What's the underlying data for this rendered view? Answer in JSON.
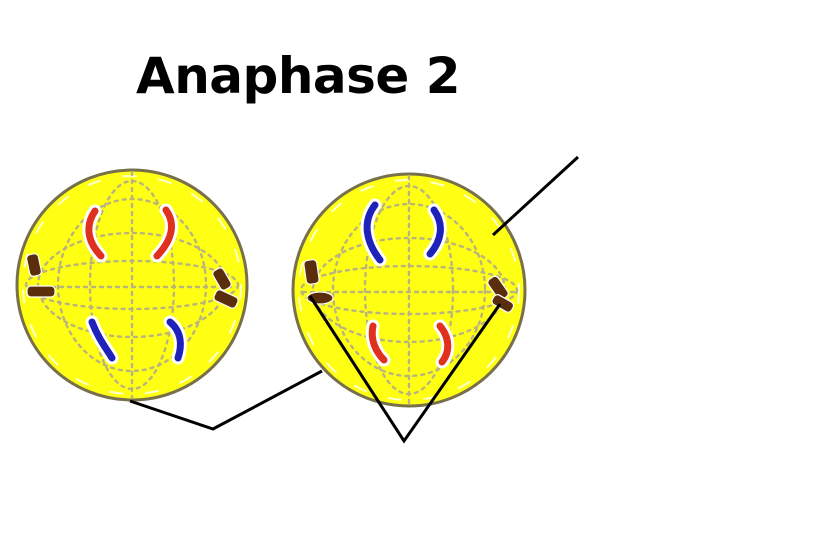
{
  "title": "Anaphase 2",
  "colors": {
    "background": "#ffffff",
    "cell_fill": "#ffff14",
    "cell_outline": "#77704a",
    "spindle": "#b9b47c",
    "chromosome_red": "#e0301e",
    "chromosome_blue": "#1f22b8",
    "centriole": "#5a2d0c",
    "label_line": "#000000"
  },
  "cells": [
    {
      "name": "left-cell",
      "chromosome_groups": [
        {
          "pole": "top",
          "color": "chromosome_red",
          "count": 2
        },
        {
          "pole": "bottom",
          "color": "chromosome_blue",
          "count": 2
        }
      ],
      "centrioles": [
        "left",
        "right"
      ]
    },
    {
      "name": "right-cell",
      "chromosome_groups": [
        {
          "pole": "top",
          "color": "chromosome_blue",
          "count": 2
        },
        {
          "pole": "bottom",
          "color": "chromosome_red",
          "count": 2
        }
      ],
      "centrioles": [
        "left",
        "right"
      ]
    }
  ],
  "pointer_lines": [
    {
      "name": "cell-pointer-line",
      "targets": [
        "left-cell",
        "right-cell"
      ]
    },
    {
      "name": "centriole-pointer-line",
      "targets": [
        "centriole-left",
        "centriole-right"
      ]
    },
    {
      "name": "membrane-pointer-line",
      "targets": [
        "right-cell-membrane"
      ]
    }
  ]
}
